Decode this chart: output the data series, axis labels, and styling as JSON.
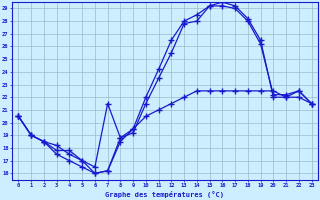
{
  "xlabel": "Graphe des températures (°C)",
  "xlim": [
    -0.5,
    23.5
  ],
  "ylim": [
    15.5,
    29.5
  ],
  "yticks": [
    16,
    17,
    18,
    19,
    20,
    21,
    22,
    23,
    24,
    25,
    26,
    27,
    28,
    29
  ],
  "xticks": [
    0,
    1,
    2,
    3,
    4,
    5,
    6,
    7,
    8,
    9,
    10,
    11,
    12,
    13,
    14,
    15,
    16,
    17,
    18,
    19,
    20,
    21,
    22,
    23
  ],
  "line1_x": [
    0,
    1,
    2,
    3,
    4,
    5,
    6,
    7,
    8,
    9,
    10,
    11,
    12,
    13,
    14,
    15,
    16,
    17,
    18,
    19,
    20,
    21,
    22,
    23
  ],
  "line1_y": [
    20.5,
    19.0,
    18.5,
    17.5,
    17.0,
    16.5,
    16.0,
    16.2,
    18.5,
    19.5,
    20.5,
    21.0,
    21.5,
    22.0,
    22.5,
    22.5,
    22.5,
    22.5,
    22.5,
    22.5,
    22.5,
    22.0,
    22.0,
    21.5
  ],
  "line2_x": [
    0,
    1,
    2,
    3,
    4,
    5,
    6,
    7,
    8,
    9,
    10,
    11,
    12,
    13,
    14,
    15,
    16,
    17,
    18,
    19,
    20,
    21,
    22,
    23
  ],
  "line2_y": [
    20.5,
    19.0,
    18.5,
    17.8,
    17.8,
    17.0,
    16.5,
    21.5,
    18.8,
    19.5,
    22.0,
    24.2,
    26.5,
    28.0,
    28.5,
    29.2,
    29.5,
    29.2,
    28.2,
    26.5,
    22.0,
    22.0,
    22.5,
    21.5
  ],
  "line3_x": [
    0,
    1,
    2,
    3,
    4,
    5,
    6,
    7,
    8,
    9,
    10,
    11,
    12,
    13,
    14,
    15,
    16,
    17,
    18,
    19,
    20,
    21,
    22,
    23
  ],
  "line3_y": [
    20.5,
    19.0,
    18.5,
    18.2,
    17.5,
    17.0,
    16.0,
    16.2,
    18.8,
    19.2,
    21.5,
    23.5,
    25.5,
    27.8,
    28.0,
    29.2,
    29.2,
    29.0,
    28.0,
    26.2,
    22.2,
    22.2,
    22.5,
    21.5
  ],
  "line_color": "#1a1acc",
  "bg_color": "#cceeff",
  "grid_color": "#99bbcc",
  "marker": "+",
  "markersize": 4,
  "linewidth": 0.9
}
